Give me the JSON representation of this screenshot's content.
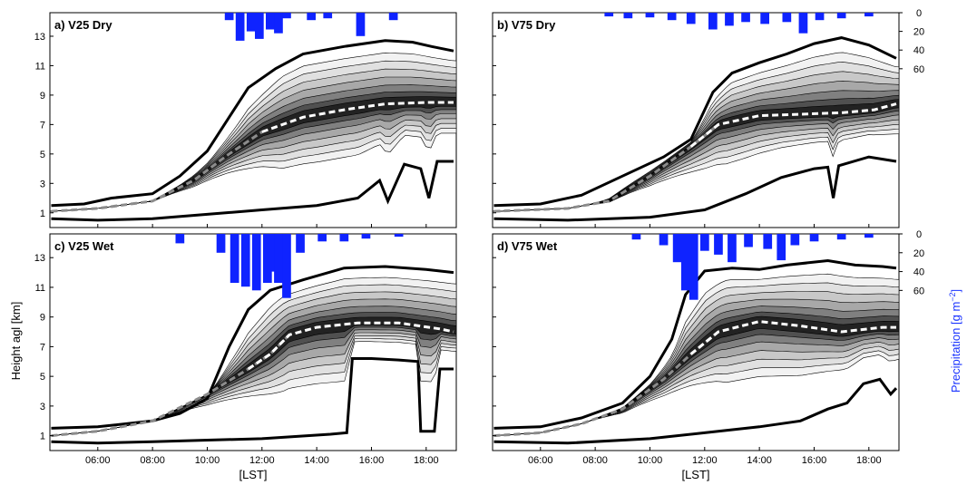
{
  "figure": {
    "ylabel": "Height agl [km]",
    "xlabel": "[LST]",
    "precip_label": "Precipitation [g m",
    "precip_label_exp": "−2",
    "precip_label_end": "]",
    "colors": {
      "precip_bar": "#0f23ff",
      "contour": "#000000",
      "thick_line": "#000000",
      "mean_line_light": "#ffffff",
      "mean_line_gray": "#8c8c8c"
    }
  },
  "chart_data": [
    {
      "type": "area",
      "panel": "a) V25 Dry",
      "x_ticks": [
        "06:00",
        "08:00",
        "10:00",
        "12:00",
        "14:00",
        "16:00",
        "18:00"
      ],
      "y_ticks": [
        "1",
        "3",
        "5",
        "7",
        "9",
        "11",
        "13"
      ],
      "precip_ticks": [
        "0",
        "20",
        "40",
        "60"
      ],
      "xlim_hours": [
        4.25,
        19.1
      ],
      "ylim_km": [
        0,
        14.6
      ],
      "precip_lim": [
        0,
        230
      ],
      "cloud_top_km": [
        [
          4.3,
          1.5
        ],
        [
          5.5,
          1.6
        ],
        [
          6.5,
          2.0
        ],
        [
          8.0,
          2.3
        ],
        [
          9.0,
          3.5
        ],
        [
          10.0,
          5.2
        ],
        [
          10.8,
          7.5
        ],
        [
          11.5,
          9.5
        ],
        [
          12.5,
          10.8
        ],
        [
          13.5,
          11.8
        ],
        [
          15.0,
          12.3
        ],
        [
          16.5,
          12.7
        ],
        [
          17.5,
          12.6
        ],
        [
          18.2,
          12.3
        ],
        [
          19.0,
          12.0
        ]
      ],
      "cloud_base_km": [
        [
          4.3,
          0.6
        ],
        [
          6.0,
          0.5
        ],
        [
          8.0,
          0.6
        ],
        [
          10.0,
          0.9
        ],
        [
          12.0,
          1.2
        ],
        [
          14.0,
          1.5
        ],
        [
          15.5,
          2.0
        ],
        [
          16.3,
          3.2
        ],
        [
          16.6,
          1.8
        ],
        [
          17.2,
          4.3
        ],
        [
          17.8,
          4.0
        ],
        [
          18.1,
          2.0
        ],
        [
          18.4,
          4.5
        ],
        [
          19.0,
          4.5
        ]
      ],
      "mean_height_km": [
        [
          4.3,
          1.1
        ],
        [
          6.0,
          1.3
        ],
        [
          8.0,
          1.8
        ],
        [
          9.5,
          3.2
        ],
        [
          10.8,
          5.0
        ],
        [
          12.0,
          6.5
        ],
        [
          13.5,
          7.5
        ],
        [
          15.0,
          8.0
        ],
        [
          16.5,
          8.4
        ],
        [
          18.0,
          8.5
        ],
        [
          19.0,
          8.5
        ]
      ],
      "precipitation": [
        [
          10.8,
          8
        ],
        [
          11.2,
          30
        ],
        [
          11.6,
          20
        ],
        [
          11.9,
          28
        ],
        [
          12.3,
          18
        ],
        [
          12.6,
          22
        ],
        [
          12.9,
          6
        ],
        [
          13.8,
          8
        ],
        [
          14.4,
          6
        ],
        [
          15.6,
          25
        ],
        [
          16.8,
          8
        ]
      ]
    },
    {
      "type": "area",
      "panel": "b) V75 Dry",
      "x_ticks": [
        "06:00",
        "08:00",
        "10:00",
        "12:00",
        "14:00",
        "16:00",
        "18:00"
      ],
      "y_ticks": [],
      "precip_ticks": [
        "0",
        "20",
        "40",
        "60"
      ],
      "xlim_hours": [
        4.25,
        19.1
      ],
      "ylim_km": [
        0,
        14.6
      ],
      "precip_lim": [
        0,
        230
      ],
      "cloud_top_km": [
        [
          4.3,
          1.5
        ],
        [
          6.0,
          1.6
        ],
        [
          7.5,
          2.2
        ],
        [
          9.0,
          3.5
        ],
        [
          10.5,
          4.8
        ],
        [
          11.5,
          6.0
        ],
        [
          12.3,
          9.2
        ],
        [
          13.0,
          10.5
        ],
        [
          14.0,
          11.2
        ],
        [
          15.0,
          11.8
        ],
        [
          16.0,
          12.5
        ],
        [
          17.0,
          12.9
        ],
        [
          18.0,
          12.4
        ],
        [
          19.0,
          11.5
        ]
      ],
      "cloud_base_km": [
        [
          4.3,
          0.6
        ],
        [
          7.0,
          0.5
        ],
        [
          10.0,
          0.7
        ],
        [
          12.0,
          1.2
        ],
        [
          13.5,
          2.3
        ],
        [
          14.8,
          3.4
        ],
        [
          16.0,
          4.0
        ],
        [
          16.5,
          4.1
        ],
        [
          16.7,
          2.0
        ],
        [
          16.9,
          4.2
        ],
        [
          18.0,
          4.8
        ],
        [
          19.0,
          4.5
        ]
      ],
      "mean_height_km": [
        [
          4.3,
          1.1
        ],
        [
          7.0,
          1.3
        ],
        [
          8.5,
          1.8
        ],
        [
          10.0,
          3.5
        ],
        [
          11.5,
          5.5
        ],
        [
          12.5,
          7.0
        ],
        [
          14.0,
          7.6
        ],
        [
          15.5,
          7.7
        ],
        [
          17.0,
          7.8
        ],
        [
          18.2,
          8.0
        ],
        [
          19.0,
          8.4
        ]
      ],
      "precipitation": [
        [
          8.5,
          4
        ],
        [
          9.2,
          6
        ],
        [
          10.0,
          5
        ],
        [
          10.8,
          8
        ],
        [
          11.5,
          12
        ],
        [
          12.3,
          18
        ],
        [
          12.9,
          14
        ],
        [
          13.5,
          10
        ],
        [
          14.2,
          12
        ],
        [
          15.0,
          10
        ],
        [
          15.6,
          22
        ],
        [
          16.2,
          8
        ],
        [
          17.0,
          6
        ],
        [
          18.0,
          4
        ]
      ]
    },
    {
      "type": "area",
      "panel": "c) V25 Wet",
      "x_ticks": [
        "06:00",
        "08:00",
        "10:00",
        "12:00",
        "14:00",
        "16:00",
        "18:00"
      ],
      "y_ticks": [
        "1",
        "3",
        "5",
        "7",
        "9",
        "11",
        "13"
      ],
      "precip_ticks": [
        "0",
        "20",
        "40",
        "60"
      ],
      "xlim_hours": [
        4.25,
        19.1
      ],
      "ylim_km": [
        0,
        14.6
      ],
      "precip_lim": [
        0,
        230
      ],
      "cloud_top_km": [
        [
          4.3,
          1.5
        ],
        [
          6.0,
          1.6
        ],
        [
          8.0,
          2.0
        ],
        [
          9.0,
          2.5
        ],
        [
          10.0,
          3.5
        ],
        [
          10.8,
          7.0
        ],
        [
          11.5,
          9.5
        ],
        [
          12.3,
          10.8
        ],
        [
          13.5,
          11.5
        ],
        [
          15.0,
          12.3
        ],
        [
          16.5,
          12.4
        ],
        [
          18.0,
          12.2
        ],
        [
          19.0,
          12.0
        ]
      ],
      "cloud_base_km": [
        [
          4.3,
          0.6
        ],
        [
          6.0,
          0.5
        ],
        [
          8.0,
          0.6
        ],
        [
          10.0,
          0.7
        ],
        [
          12.0,
          0.8
        ],
        [
          14.5,
          1.1
        ],
        [
          15.1,
          1.2
        ],
        [
          15.3,
          6.2
        ],
        [
          16.0,
          6.2
        ],
        [
          17.0,
          6.1
        ],
        [
          17.7,
          6.0
        ],
        [
          17.8,
          1.3
        ],
        [
          18.3,
          1.3
        ],
        [
          18.5,
          5.5
        ],
        [
          19.0,
          5.5
        ]
      ],
      "mean_height_km": [
        [
          4.3,
          1.0
        ],
        [
          6.0,
          1.3
        ],
        [
          8.0,
          2.0
        ],
        [
          10.0,
          3.8
        ],
        [
          11.5,
          5.5
        ],
        [
          12.3,
          6.5
        ],
        [
          13.0,
          7.8
        ],
        [
          14.0,
          8.3
        ],
        [
          15.5,
          8.6
        ],
        [
          17.0,
          8.6
        ],
        [
          18.5,
          8.2
        ],
        [
          19.0,
          8.0
        ]
      ],
      "precipitation": [
        [
          9.0,
          10
        ],
        [
          10.5,
          20
        ],
        [
          11.0,
          52
        ],
        [
          11.4,
          56
        ],
        [
          11.8,
          60
        ],
        [
          12.2,
          52
        ],
        [
          12.4,
          40
        ],
        [
          12.6,
          52
        ],
        [
          12.9,
          68
        ],
        [
          13.4,
          20
        ],
        [
          14.2,
          8
        ],
        [
          15.0,
          8
        ],
        [
          15.8,
          5
        ],
        [
          17.0,
          3
        ]
      ]
    },
    {
      "type": "area",
      "panel": "d) V75 Wet",
      "x_ticks": [
        "06:00",
        "08:00",
        "10:00",
        "12:00",
        "14:00",
        "16:00",
        "18:00"
      ],
      "y_ticks": [],
      "precip_ticks": [
        "0",
        "20",
        "40",
        "60"
      ],
      "xlim_hours": [
        4.25,
        19.1
      ],
      "ylim_km": [
        0,
        14.6
      ],
      "precip_lim": [
        0,
        230
      ],
      "cloud_top_km": [
        [
          4.3,
          1.5
        ],
        [
          6.0,
          1.6
        ],
        [
          7.5,
          2.2
        ],
        [
          9.0,
          3.2
        ],
        [
          10.0,
          5.0
        ],
        [
          10.8,
          7.5
        ],
        [
          11.3,
          10.5
        ],
        [
          12.0,
          12.1
        ],
        [
          13.0,
          12.3
        ],
        [
          14.0,
          12.2
        ],
        [
          15.0,
          12.5
        ],
        [
          16.5,
          12.8
        ],
        [
          17.5,
          12.5
        ],
        [
          18.5,
          12.4
        ],
        [
          19.0,
          12.3
        ]
      ],
      "cloud_base_km": [
        [
          4.3,
          0.6
        ],
        [
          7.0,
          0.5
        ],
        [
          10.0,
          0.8
        ],
        [
          12.0,
          1.2
        ],
        [
          14.0,
          1.6
        ],
        [
          15.5,
          2.0
        ],
        [
          16.5,
          2.8
        ],
        [
          17.2,
          3.2
        ],
        [
          17.8,
          4.5
        ],
        [
          18.4,
          4.8
        ],
        [
          18.8,
          3.8
        ],
        [
          19.0,
          4.2
        ]
      ],
      "mean_height_km": [
        [
          4.3,
          1.0
        ],
        [
          6.0,
          1.2
        ],
        [
          7.5,
          1.8
        ],
        [
          9.0,
          2.8
        ],
        [
          10.5,
          4.8
        ],
        [
          11.5,
          6.5
        ],
        [
          12.5,
          8.0
        ],
        [
          14.0,
          8.7
        ],
        [
          15.5,
          8.4
        ],
        [
          17.0,
          8.0
        ],
        [
          18.5,
          8.3
        ],
        [
          19.0,
          8.3
        ]
      ],
      "precipitation": [
        [
          9.5,
          6
        ],
        [
          10.5,
          12
        ],
        [
          11.0,
          30
        ],
        [
          11.3,
          60
        ],
        [
          11.6,
          70
        ],
        [
          12.0,
          18
        ],
        [
          12.5,
          22
        ],
        [
          13.0,
          30
        ],
        [
          13.6,
          14
        ],
        [
          14.3,
          16
        ],
        [
          14.8,
          28
        ],
        [
          15.3,
          12
        ],
        [
          16.0,
          8
        ],
        [
          17.0,
          6
        ],
        [
          18.0,
          4
        ]
      ]
    }
  ]
}
